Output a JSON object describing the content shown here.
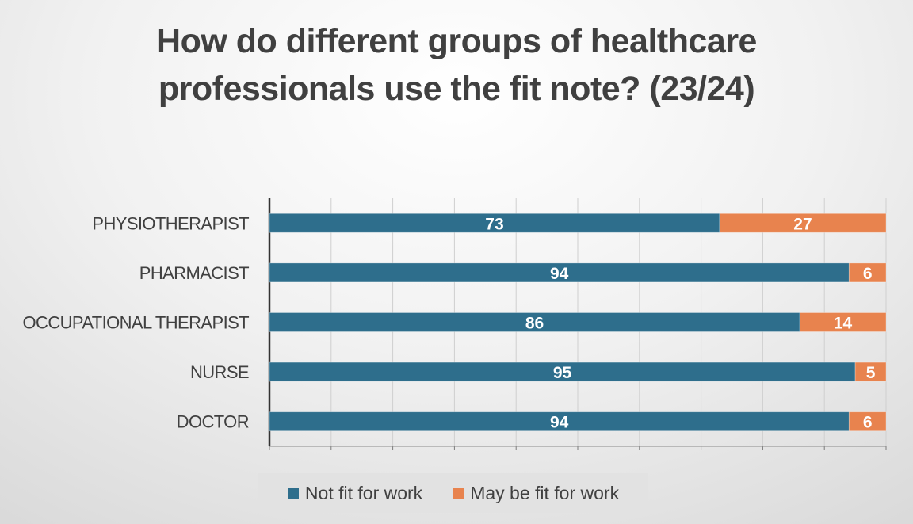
{
  "chart_data": {
    "type": "bar",
    "orientation": "horizontal",
    "stacked": true,
    "title_lines": [
      "How do different groups of healthcare",
      "professionals use the fit note? (23/24)"
    ],
    "categories": [
      "PHYSIOTHERAPIST",
      "PHARMACIST",
      "OCCUPATIONAL THERAPIST",
      "NURSE",
      "DOCTOR"
    ],
    "series": [
      {
        "name": "Not fit for work",
        "color": "#2e6e8c",
        "values": [
          73,
          94,
          86,
          95,
          94
        ]
      },
      {
        "name": "May be fit for work",
        "color": "#e8834e",
        "values": [
          27,
          6,
          14,
          5,
          6
        ]
      }
    ],
    "xlim": [
      0,
      100
    ],
    "x_tick_labels_shown": false,
    "grid": true,
    "legend_position": "bottom",
    "data_labels": true
  }
}
